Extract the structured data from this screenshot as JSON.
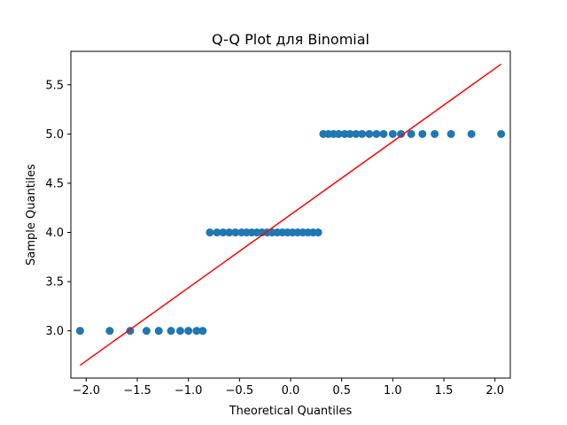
{
  "chart_data": {
    "type": "scatter",
    "title": "Q-Q Plot для Binomial",
    "xlabel": "Theoretical Quantiles",
    "ylabel": "Sample Quantiles",
    "xlim": [
      -2.15,
      2.15
    ],
    "ylim": [
      2.52,
      5.84
    ],
    "xticks": [
      -2.0,
      -1.5,
      -1.0,
      -0.5,
      0.0,
      0.5,
      1.0,
      1.5,
      2.0
    ],
    "xtick_labels": [
      "−2.0",
      "−1.5",
      "−1.0",
      "−0.5",
      "0.0",
      "0.5",
      "1.0",
      "1.5",
      "2.0"
    ],
    "yticks": [
      3.0,
      3.5,
      4.0,
      4.5,
      5.0,
      5.5
    ],
    "ytick_labels": [
      "3.0",
      "3.5",
      "4.0",
      "4.5",
      "5.0",
      "5.5"
    ],
    "grid": false,
    "series": [
      {
        "type": "scatter",
        "color": "#1f77b4",
        "points": [
          [
            -2.06,
            3.0
          ],
          [
            -1.77,
            3.0
          ],
          [
            -1.57,
            3.0
          ],
          [
            -1.41,
            3.0
          ],
          [
            -1.29,
            3.0
          ],
          [
            -1.17,
            3.0
          ],
          [
            -1.08,
            3.0
          ],
          [
            -1.0,
            3.0
          ],
          [
            -0.92,
            3.0
          ],
          [
            -0.86,
            3.0
          ],
          [
            -0.79,
            4.0
          ],
          [
            -0.72,
            4.0
          ],
          [
            -0.66,
            4.0
          ],
          [
            -0.6,
            4.0
          ],
          [
            -0.54,
            4.0
          ],
          [
            -0.48,
            4.0
          ],
          [
            -0.43,
            4.0
          ],
          [
            -0.38,
            4.0
          ],
          [
            -0.33,
            4.0
          ],
          [
            -0.28,
            4.0
          ],
          [
            -0.23,
            4.0
          ],
          [
            -0.18,
            4.0
          ],
          [
            -0.13,
            4.0
          ],
          [
            -0.08,
            4.0
          ],
          [
            -0.03,
            4.0
          ],
          [
            0.02,
            4.0
          ],
          [
            0.07,
            4.0
          ],
          [
            0.12,
            4.0
          ],
          [
            0.17,
            4.0
          ],
          [
            0.22,
            4.0
          ],
          [
            0.27,
            4.0
          ],
          [
            0.32,
            5.0
          ],
          [
            0.37,
            5.0
          ],
          [
            0.42,
            5.0
          ],
          [
            0.47,
            5.0
          ],
          [
            0.53,
            5.0
          ],
          [
            0.58,
            5.0
          ],
          [
            0.64,
            5.0
          ],
          [
            0.7,
            5.0
          ],
          [
            0.77,
            5.0
          ],
          [
            0.84,
            5.0
          ],
          [
            0.91,
            5.0
          ],
          [
            1.0,
            5.0
          ],
          [
            1.08,
            5.0
          ],
          [
            1.18,
            5.0
          ],
          [
            1.29,
            5.0
          ],
          [
            1.41,
            5.0
          ],
          [
            1.57,
            5.0
          ],
          [
            1.77,
            5.0
          ],
          [
            2.06,
            5.0
          ]
        ]
      },
      {
        "type": "line",
        "color": "#ff0000",
        "points": [
          [
            -2.06,
            2.65
          ],
          [
            2.06,
            5.71
          ]
        ]
      }
    ]
  }
}
